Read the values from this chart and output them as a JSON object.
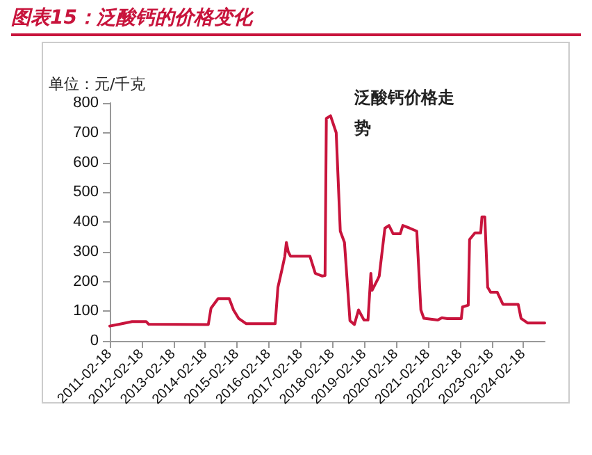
{
  "chart_data": {
    "type": "line",
    "title": "图表15：泛酸钙的价格变化",
    "subtitle": "泛酸钙价格走势",
    "ylabel": "单位：元/千克",
    "x": [
      "2011-02-18",
      "2011-05-20",
      "2011-11-01",
      "2012-04-10",
      "2012-05-10",
      "2014-03-25",
      "2014-04-25",
      "2014-07-15",
      "2014-11-20",
      "2015-01-08",
      "2015-03-10",
      "2015-06-01",
      "2016-05-01",
      "2016-06-01",
      "2016-07-16",
      "2016-08-19",
      "2016-09-06",
      "2016-09-27",
      "2016-10-23",
      "2017-06-03",
      "2017-08-04",
      "2017-10-23",
      "2017-11-24",
      "2017-12-09",
      "2018-01-26",
      "2018-04-01",
      "2018-05-18",
      "2018-07-05",
      "2018-09-06",
      "2018-10-27",
      "2018-12-13",
      "2019-02-14",
      "2019-04-01",
      "2019-05-04",
      "2019-05-18",
      "2019-07-23",
      "2019-08-08",
      "2019-10-12",
      "2019-11-28",
      "2020-01-15",
      "2020-04-05",
      "2020-05-05",
      "2020-07-23",
      "2020-10-12",
      "2020-11-28",
      "2021-01-01",
      "2021-06-10",
      "2021-07-27",
      "2021-09-27",
      "2022-03-07",
      "2022-03-21",
      "2022-05-26",
      "2022-06-10",
      "2022-08-11",
      "2022-10-16",
      "2022-10-30",
      "2022-12-02",
      "2023-01-04",
      "2023-02-06",
      "2023-04-23",
      "2023-06-28",
      "2023-12-20",
      "2024-01-22",
      "2024-04-08",
      "2024-10-20"
    ],
    "series": [
      {
        "color": "#c8143c",
        "values": [
          50,
          55,
          65,
          65,
          56,
          55,
          110,
          142,
          142,
          104,
          75,
          58,
          58,
          180,
          238,
          284,
          331,
          300,
          285,
          285,
          227,
          218,
          220,
          748,
          757,
          700,
          369,
          331,
          68,
          55,
          104,
          70,
          70,
          227,
          170,
          208,
          218,
          379,
          388,
          360,
          360,
          388,
          379,
          369,
          104,
          76,
          70,
          78,
          75,
          75,
          114,
          120,
          341,
          363,
          363,
          417,
          417,
          180,
          164,
          164,
          123,
          123,
          76,
          60,
          60
        ]
      }
    ],
    "xlim": [
      "2011-02-18",
      "2024-10-20"
    ],
    "xticks": [
      "2011-02-18",
      "2012-02-18",
      "2013-02-18",
      "2014-02-18",
      "2015-02-18",
      "2016-02-18",
      "2017-02-18",
      "2018-02-18",
      "2019-02-18",
      "2020-02-18",
      "2021-02-18",
      "2022-02-18",
      "2023-02-18",
      "2024-02-18"
    ],
    "ylim": [
      0,
      800
    ],
    "yticks": [
      0,
      100,
      200,
      300,
      400,
      500,
      600,
      700,
      800
    ],
    "grid": false,
    "marker": "none",
    "line_style": "solid"
  }
}
